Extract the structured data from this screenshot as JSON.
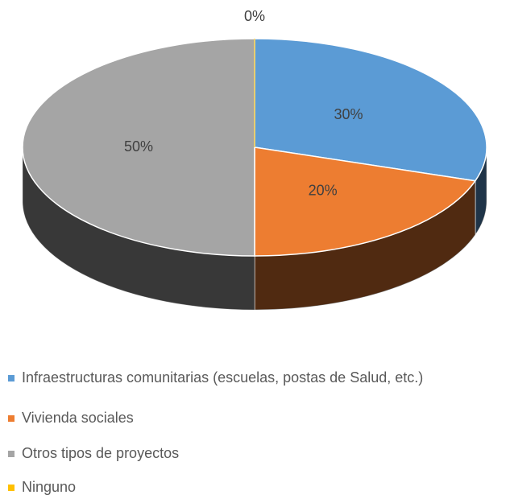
{
  "chart_data": {
    "type": "pie",
    "categories": [
      "Infraestructuras comunitarias (escuelas, postas de Salud, etc.)",
      "Vivienda sociales",
      "Otros tipos de proyectos",
      "Ninguno"
    ],
    "values": [
      30,
      20,
      50,
      0
    ],
    "value_labels": [
      "30%",
      "20%",
      "50%",
      "0%"
    ],
    "colors": [
      "#5b9bd5",
      "#ed7d31",
      "#a5a5a5",
      "#ffc000"
    ],
    "legend": "bottom"
  }
}
